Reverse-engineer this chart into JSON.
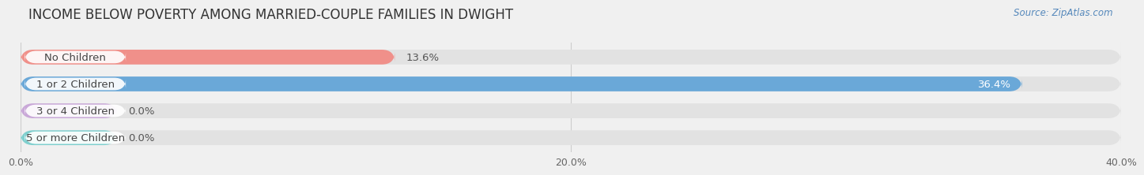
{
  "title": "INCOME BELOW POVERTY AMONG MARRIED-COUPLE FAMILIES IN DWIGHT",
  "source": "Source: ZipAtlas.com",
  "categories": [
    "No Children",
    "1 or 2 Children",
    "3 or 4 Children",
    "5 or more Children"
  ],
  "values": [
    13.6,
    36.4,
    0.0,
    0.0
  ],
  "bar_colors": [
    "#f0908a",
    "#6aa8d8",
    "#c9a8d8",
    "#7ecfce"
  ],
  "label_colors": [
    "#555555",
    "#ffffff",
    "#555555",
    "#555555"
  ],
  "xlim": [
    0,
    40
  ],
  "xticks": [
    0.0,
    20.0,
    40.0
  ],
  "xtick_labels": [
    "0.0%",
    "20.0%",
    "40.0%"
  ],
  "bg_color": "#f0f0f0",
  "bar_bg_color": "#e2e2e2",
  "title_fontsize": 12,
  "label_fontsize": 9.5,
  "tick_fontsize": 9,
  "bar_height": 0.55,
  "small_bar_width": 3.5
}
